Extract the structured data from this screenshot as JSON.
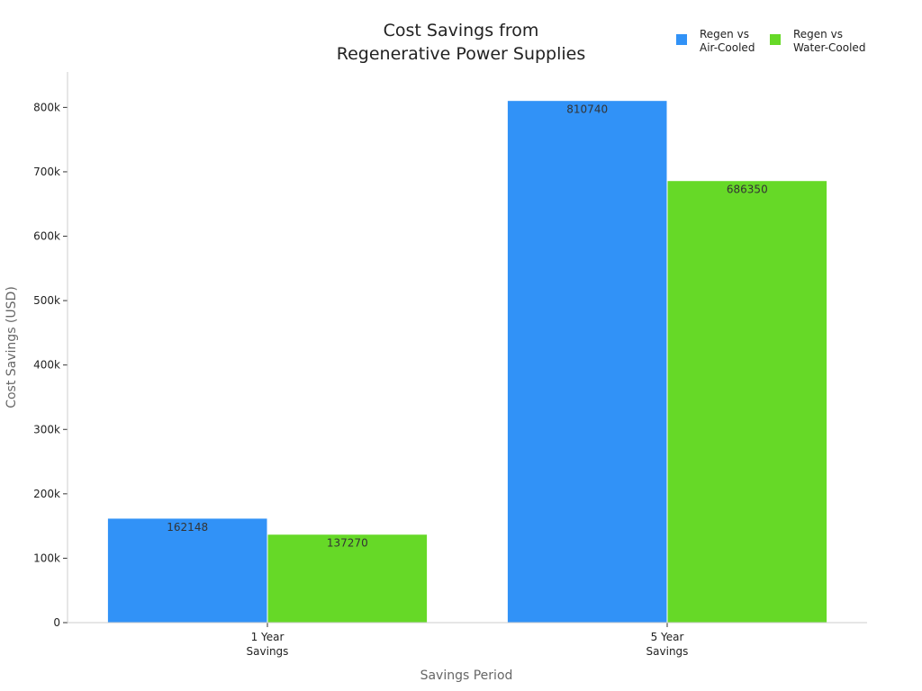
{
  "chart_data": {
    "type": "bar",
    "title_lines": [
      "Cost Savings from",
      "Regenerative Power Supplies"
    ],
    "xlabel": "Savings Period",
    "ylabel": "Cost Savings (USD)",
    "categories": [
      [
        "1 Year",
        "Savings"
      ],
      [
        "5 Year",
        "Savings"
      ]
    ],
    "series": [
      {
        "name_lines": [
          "Regen vs",
          "Air-Cooled"
        ],
        "color": "#3192f7",
        "values": [
          162148,
          810740
        ],
        "labels": [
          "162148",
          "810740"
        ]
      },
      {
        "name_lines": [
          "Regen vs",
          "Water-Cooled"
        ],
        "color": "#66d927",
        "values": [
          137270,
          686350
        ],
        "labels": [
          "137270",
          "686350"
        ]
      }
    ],
    "ylim": [
      0,
      855000
    ],
    "yticks": [
      0,
      100000,
      200000,
      300000,
      400000,
      500000,
      600000,
      700000,
      800000
    ],
    "ytick_labels": [
      "0",
      "100k",
      "200k",
      "300k",
      "400k",
      "500k",
      "600k",
      "700k",
      "800k"
    ],
    "grid": false,
    "legend_position": "top-right"
  }
}
